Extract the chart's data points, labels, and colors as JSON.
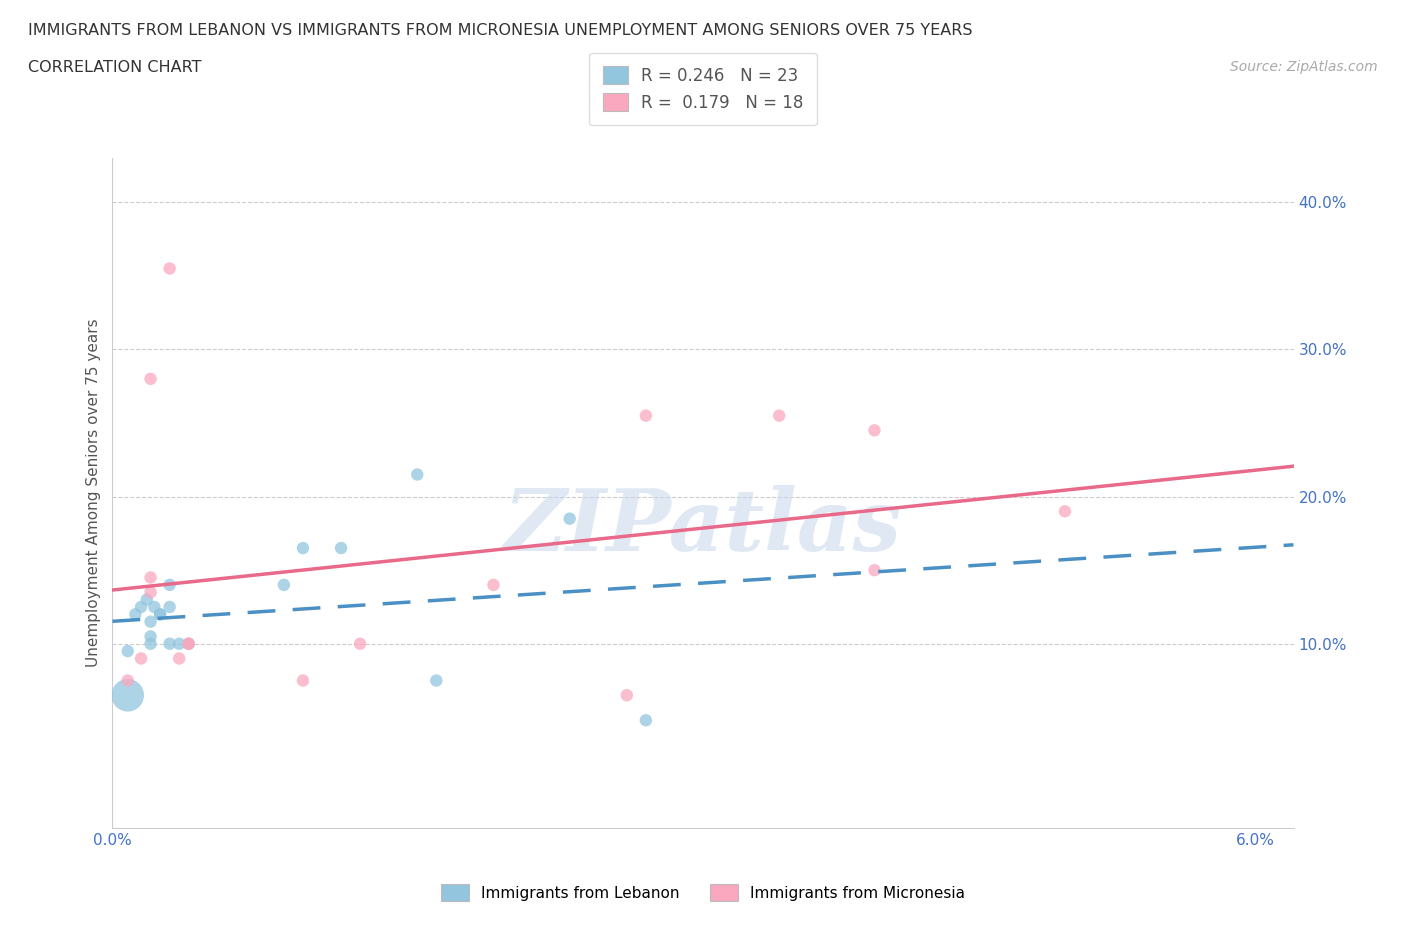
{
  "title_line1": "IMMIGRANTS FROM LEBANON VS IMMIGRANTS FROM MICRONESIA UNEMPLOYMENT AMONG SENIORS OVER 75 YEARS",
  "title_line2": "CORRELATION CHART",
  "source": "Source: ZipAtlas.com",
  "ylabel": "Unemployment Among Seniors over 75 years",
  "xlim": [
    0.0,
    0.062
  ],
  "ylim": [
    -0.025,
    0.43
  ],
  "yticks": [
    0.1,
    0.2,
    0.3,
    0.4
  ],
  "ytick_labels": [
    "10.0%",
    "20.0%",
    "30.0%",
    "40.0%"
  ],
  "xticks": [
    0.0,
    0.01,
    0.02,
    0.03,
    0.04,
    0.05,
    0.06
  ],
  "xtick_labels": [
    "0.0%",
    "",
    "",
    "",
    "",
    "",
    "6.0%"
  ],
  "lebanon_R": 0.246,
  "lebanon_N": 23,
  "micronesia_R": 0.179,
  "micronesia_N": 18,
  "lebanon_color": "#92c5de",
  "micronesia_color": "#f9a8bf",
  "lebanon_line_color": "#4a90c4",
  "micronesia_line_color": "#e8698a",
  "watermark_text": "ZIPatlas",
  "lebanon_x": [
    0.0008,
    0.0008,
    0.0012,
    0.0015,
    0.0018,
    0.002,
    0.002,
    0.002,
    0.0022,
    0.0025,
    0.0025,
    0.003,
    0.003,
    0.003,
    0.0035,
    0.004,
    0.009,
    0.01,
    0.012,
    0.016,
    0.017,
    0.024,
    0.028
  ],
  "lebanon_y": [
    0.095,
    0.065,
    0.12,
    0.125,
    0.13,
    0.115,
    0.105,
    0.1,
    0.125,
    0.12,
    0.12,
    0.125,
    0.14,
    0.1,
    0.1,
    0.1,
    0.14,
    0.165,
    0.165,
    0.215,
    0.075,
    0.185,
    0.048
  ],
  "lebanon_sizes": [
    80,
    550,
    80,
    80,
    80,
    80,
    80,
    80,
    80,
    80,
    80,
    80,
    80,
    80,
    80,
    80,
    80,
    80,
    80,
    80,
    80,
    80,
    80
  ],
  "micronesia_x": [
    0.0008,
    0.0015,
    0.002,
    0.002,
    0.002,
    0.003,
    0.0035,
    0.004,
    0.004,
    0.01,
    0.013,
    0.02,
    0.027,
    0.028,
    0.035,
    0.04,
    0.04,
    0.05
  ],
  "micronesia_y": [
    0.075,
    0.09,
    0.135,
    0.145,
    0.28,
    0.355,
    0.09,
    0.1,
    0.1,
    0.075,
    0.1,
    0.14,
    0.065,
    0.255,
    0.255,
    0.15,
    0.245,
    0.19
  ],
  "micronesia_sizes": [
    80,
    80,
    80,
    80,
    80,
    80,
    80,
    80,
    80,
    80,
    80,
    80,
    80,
    80,
    80,
    80,
    80,
    80
  ]
}
